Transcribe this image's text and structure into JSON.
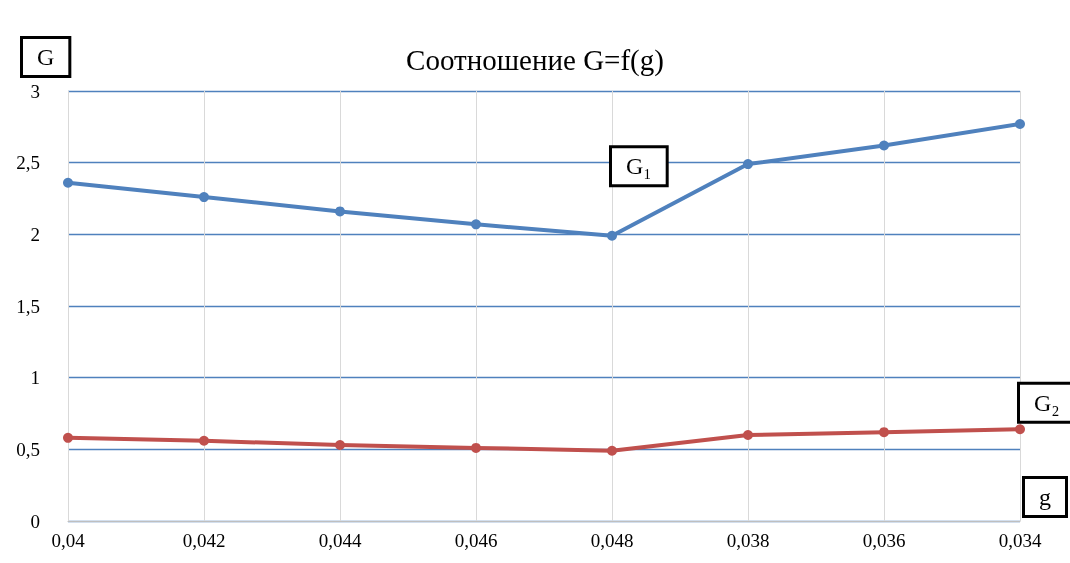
{
  "chart_data": {
    "type": "line",
    "title": "Соотношение G=f(g)",
    "xlabel": "g",
    "ylabel": "G",
    "categories": [
      "0,04",
      "0,042",
      "0,044",
      "0,046",
      "0,048",
      "0,038",
      "0,036",
      "0,034"
    ],
    "series": [
      {
        "name": "G₁",
        "color": "#4f81bd",
        "values": [
          2.36,
          2.26,
          2.16,
          2.07,
          1.99,
          2.49,
          2.62,
          2.77
        ]
      },
      {
        "name": "G₂",
        "color": "#c0504d",
        "values": [
          0.58,
          0.56,
          0.53,
          0.51,
          0.49,
          0.6,
          0.62,
          0.64
        ]
      }
    ],
    "ylim": [
      0,
      3
    ],
    "yticks": [
      0,
      {
        "value": 0.5,
        "label": "0,5"
      },
      1,
      {
        "value": 1.5,
        "label": "1,5"
      },
      2,
      {
        "value": 2.5,
        "label": "2,5"
      },
      3
    ],
    "grid": true,
    "marker": "circle",
    "line_style": "solid"
  }
}
